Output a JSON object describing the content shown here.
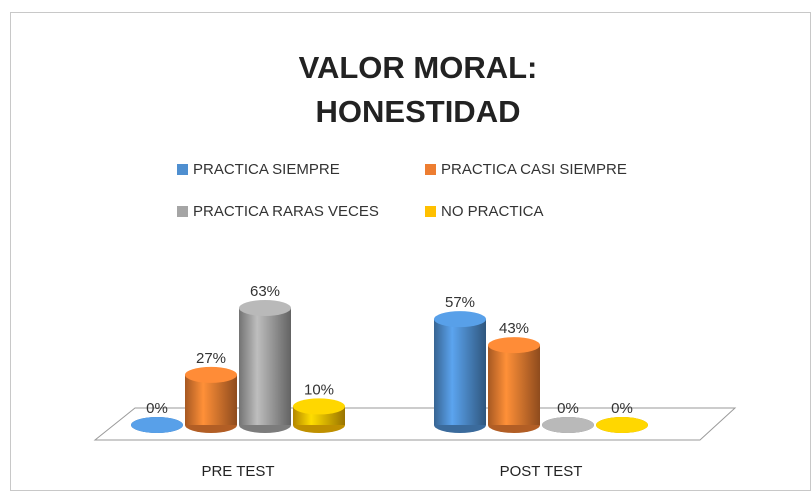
{
  "chart_data": {
    "type": "cylinder",
    "title": [
      "VALOR MORAL:",
      "HONESTIDAD"
    ],
    "categories": [
      "PRE TEST",
      "POST TEST"
    ],
    "series": [
      {
        "name": "PRACTICA SIEMPRE",
        "color": "#4f8fd0",
        "values": [
          0,
          57
        ],
        "value_labels": [
          "0%",
          "57%"
        ]
      },
      {
        "name": "PRACTICA CASI SIEMPRE",
        "color": "#ed7d31",
        "values": [
          27,
          43
        ],
        "value_labels": [
          "27%",
          "43%"
        ]
      },
      {
        "name": "PRACTICA RARAS VECES",
        "color": "#a5a5a5",
        "values": [
          63,
          0
        ],
        "value_labels": [
          "63%",
          "0%"
        ]
      },
      {
        "name": "NO PRACTICA",
        "color": "#ffc000",
        "values": [
          10,
          0
        ],
        "value_labels": [
          "10%",
          "0%"
        ]
      }
    ],
    "ylim": [
      0,
      70
    ]
  }
}
